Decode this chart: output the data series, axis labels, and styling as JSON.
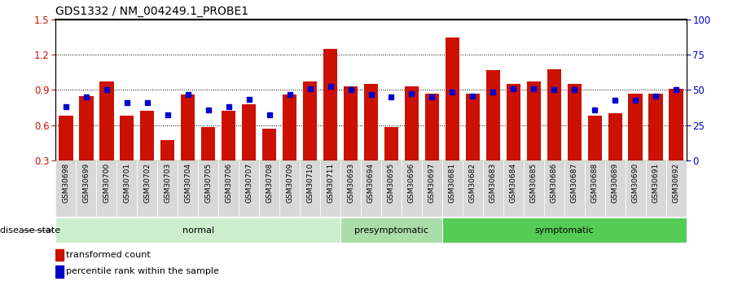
{
  "title": "GDS1332 / NM_004249.1_PROBE1",
  "categories": [
    "GSM30698",
    "GSM30699",
    "GSM30700",
    "GSM30701",
    "GSM30702",
    "GSM30703",
    "GSM30704",
    "GSM30705",
    "GSM30706",
    "GSM30707",
    "GSM30708",
    "GSM30709",
    "GSM30710",
    "GSM30711",
    "GSM30693",
    "GSM30694",
    "GSM30695",
    "GSM30696",
    "GSM30697",
    "GSM30681",
    "GSM30682",
    "GSM30683",
    "GSM30684",
    "GSM30685",
    "GSM30686",
    "GSM30687",
    "GSM30688",
    "GSM30689",
    "GSM30690",
    "GSM30691",
    "GSM30692"
  ],
  "red_values": [
    0.68,
    0.85,
    0.97,
    0.68,
    0.72,
    0.47,
    0.86,
    0.58,
    0.72,
    0.78,
    0.57,
    0.86,
    0.97,
    1.25,
    0.93,
    0.95,
    0.58,
    0.93,
    0.87,
    1.35,
    0.87,
    1.07,
    0.95,
    0.97,
    1.08,
    0.95,
    0.68,
    0.7,
    0.87,
    0.87,
    0.91
  ],
  "blue_values": [
    0.76,
    0.84,
    0.9,
    0.79,
    0.79,
    0.69,
    0.86,
    0.73,
    0.76,
    0.82,
    0.69,
    0.86,
    0.91,
    0.93,
    0.9,
    0.86,
    0.84,
    0.87,
    0.84,
    0.88,
    0.85,
    0.88,
    0.91,
    0.91,
    0.9,
    0.9,
    0.73,
    0.81,
    0.81,
    0.85,
    0.9
  ],
  "groups": [
    {
      "label": "normal",
      "start": 0,
      "end": 13,
      "color": "#cceecc"
    },
    {
      "label": "presymptomatic",
      "start": 14,
      "end": 18,
      "color": "#aaddaa"
    },
    {
      "label": "symptomatic",
      "start": 19,
      "end": 30,
      "color": "#55cc55"
    }
  ],
  "ylim_left": [
    0.3,
    1.5
  ],
  "ylim_right": [
    0,
    100
  ],
  "yticks_left": [
    0.3,
    0.6,
    0.9,
    1.2,
    1.5
  ],
  "yticks_right": [
    0,
    25,
    50,
    75,
    100
  ],
  "bar_color": "#cc1100",
  "dot_color": "#0000cc",
  "background_color": "#ffffff",
  "title_fontsize": 10,
  "axis_label_color_left": "#cc1100",
  "axis_label_color_right": "#0000cc",
  "legend_items": [
    "transformed count",
    "percentile rank within the sample"
  ],
  "disease_state_label": "disease state",
  "tick_label_bg": "#d8d8d8"
}
